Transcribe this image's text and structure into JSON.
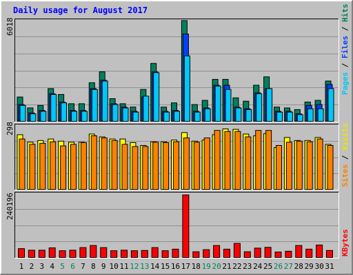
{
  "title": "Daily usage for August 2017",
  "colors": {
    "background": "#c0c0c0",
    "title": "#0000ff",
    "grid": "#8f8f8f",
    "hits": "#00805c",
    "files": "#0040ff",
    "pages": "#00c8f8",
    "visits": "#ffff00",
    "sites": "#ff8000",
    "kbytes": "#ff0000",
    "weekday_label": "#000000",
    "weekend_label": "#00805c"
  },
  "legend_right": {
    "pages": "Pages",
    "files": "Files",
    "hits": "Hits",
    "sites": "Sites",
    "visits": "Visits",
    "kbytes": "KBytes",
    "sep": " / "
  },
  "chart_data": [
    {
      "type": "bar",
      "panel": "hits-files-pages",
      "ylabel": "6018",
      "ylim": [
        0,
        6018
      ],
      "categories": [
        "1",
        "2",
        "3",
        "4",
        "5",
        "6",
        "7",
        "8",
        "9",
        "10",
        "11",
        "12",
        "13",
        "14",
        "15",
        "16",
        "17",
        "18",
        "19",
        "20",
        "21",
        "22",
        "23",
        "24",
        "25",
        "26",
        "27",
        "28",
        "29",
        "30",
        "31"
      ],
      "weekend": [
        false,
        false,
        false,
        false,
        true,
        true,
        false,
        false,
        false,
        false,
        false,
        true,
        true,
        false,
        false,
        false,
        false,
        false,
        true,
        true,
        false,
        false,
        false,
        false,
        false,
        true,
        true,
        false,
        false,
        false,
        false
      ],
      "series": [
        {
          "name": "Hits",
          "values": [
            1450,
            800,
            950,
            1950,
            1600,
            1050,
            1050,
            2300,
            2950,
            1350,
            1050,
            850,
            1900,
            3450,
            850,
            1100,
            6000,
            1000,
            1250,
            2500,
            2500,
            1400,
            1200,
            2150,
            2650,
            850,
            800,
            700,
            1150,
            1250,
            2400
          ]
        },
        {
          "name": "Files",
          "values": [
            1000,
            500,
            650,
            1650,
            1150,
            650,
            650,
            1950,
            2450,
            1050,
            850,
            600,
            1450,
            2950,
            600,
            650,
            5200,
            600,
            800,
            2150,
            2150,
            850,
            750,
            1700,
            1950,
            600,
            600,
            450,
            950,
            1000,
            2200
          ]
        },
        {
          "name": "Pages",
          "values": [
            950,
            450,
            600,
            1600,
            1100,
            600,
            600,
            1900,
            2400,
            1000,
            800,
            550,
            1500,
            2900,
            550,
            600,
            3900,
            550,
            750,
            2100,
            1900,
            800,
            700,
            1650,
            1950,
            550,
            550,
            400,
            750,
            750,
            1950
          ]
        }
      ]
    },
    {
      "type": "bar",
      "panel": "visits-sites",
      "ylabel": "298",
      "ylim": [
        0,
        298
      ],
      "categories": [
        "1",
        "2",
        "3",
        "4",
        "5",
        "6",
        "7",
        "8",
        "9",
        "10",
        "11",
        "12",
        "13",
        "14",
        "15",
        "16",
        "17",
        "18",
        "19",
        "20",
        "21",
        "22",
        "23",
        "24",
        "25",
        "26",
        "27",
        "28",
        "29",
        "30",
        "31"
      ],
      "series": [
        {
          "name": "Visits",
          "values": [
            255,
            220,
            228,
            235,
            225,
            220,
            220,
            258,
            245,
            235,
            235,
            218,
            205,
            222,
            222,
            230,
            265,
            225,
            230,
            255,
            282,
            280,
            258,
            250,
            260,
            195,
            242,
            228,
            228,
            242,
            210
          ]
        },
        {
          "name": "Sites",
          "values": [
            235,
            210,
            215,
            222,
            203,
            210,
            218,
            250,
            240,
            228,
            210,
            200,
            200,
            220,
            218,
            222,
            240,
            220,
            240,
            275,
            270,
            270,
            245,
            275,
            275,
            205,
            220,
            225,
            222,
            235,
            205
          ]
        }
      ]
    },
    {
      "type": "bar",
      "panel": "kbytes",
      "ylabel": "240196",
      "ylim": [
        0,
        240196
      ],
      "categories": [
        "1",
        "2",
        "3",
        "4",
        "5",
        "6",
        "7",
        "8",
        "9",
        "10",
        "11",
        "12",
        "13",
        "14",
        "15",
        "16",
        "17",
        "18",
        "19",
        "20",
        "21",
        "22",
        "23",
        "24",
        "25",
        "26",
        "27",
        "28",
        "29",
        "30",
        "31"
      ],
      "series": [
        {
          "name": "KBytes",
          "values": [
            34000,
            28000,
            28000,
            37000,
            26000,
            28000,
            38000,
            46000,
            38000,
            26000,
            28000,
            26000,
            27000,
            38000,
            26000,
            32000,
            240000,
            22000,
            30000,
            46000,
            32000,
            54000,
            22000,
            36000,
            39000,
            21000,
            24000,
            46000,
            32000,
            48000,
            27000
          ]
        }
      ]
    }
  ]
}
